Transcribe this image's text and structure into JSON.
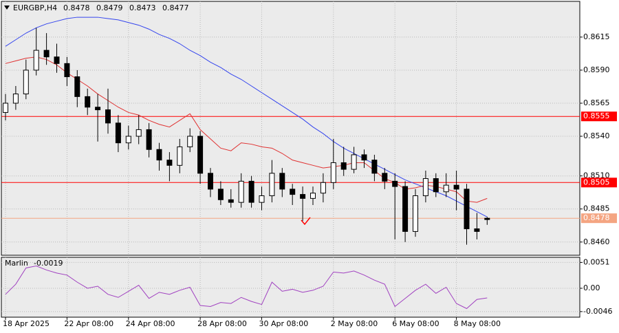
{
  "chart_data": {
    "type": "candlestick",
    "title": "EURGBP,H4",
    "categories": [
      "18 Apr 2025",
      null,
      null,
      null,
      null,
      null,
      "22 Apr 08:00",
      null,
      null,
      null,
      null,
      null,
      "24 Apr 08:00",
      null,
      null,
      null,
      null,
      null,
      null,
      "28 Apr 08:00",
      null,
      null,
      null,
      null,
      null,
      "30 Apr 08:00",
      null,
      null,
      null,
      null,
      null,
      null,
      "2 May 08:00",
      null,
      null,
      null,
      null,
      null,
      "6 May 08:00",
      null,
      null,
      null,
      null,
      null,
      "8 May 08:00",
      null,
      null,
      null
    ],
    "open": [
      0.8558,
      0.8565,
      0.8572,
      0.859,
      0.8605,
      0.86,
      0.8595,
      0.8585,
      0.857,
      0.8562,
      0.856,
      0.855,
      0.8535,
      0.854,
      0.8545,
      0.853,
      0.8522,
      0.8518,
      0.8532,
      0.854,
      0.8512,
      0.85,
      0.8492,
      0.849,
      0.8506,
      0.849,
      0.8495,
      0.8512,
      0.85,
      0.8496,
      0.8493,
      0.8497,
      0.8505,
      0.852,
      0.8515,
      0.8526,
      0.8522,
      0.8512,
      0.8506,
      0.8502,
      0.8468,
      0.8495,
      0.8508,
      0.8498,
      0.8503,
      0.85,
      0.847,
      0.8478
    ],
    "high": [
      0.8572,
      0.8578,
      0.8598,
      0.8622,
      0.8618,
      0.861,
      0.86,
      0.859,
      0.8576,
      0.8572,
      0.8576,
      0.8556,
      0.8548,
      0.8556,
      0.855,
      0.8535,
      0.8528,
      0.8538,
      0.8546,
      0.8544,
      0.8516,
      0.8506,
      0.85,
      0.8512,
      0.851,
      0.8502,
      0.8522,
      0.8516,
      0.8504,
      0.8502,
      0.8502,
      0.8512,
      0.8538,
      0.8532,
      0.8532,
      0.853,
      0.8526,
      0.8516,
      0.8512,
      0.8506,
      0.85,
      0.8514,
      0.8512,
      0.8512,
      0.8514,
      0.8504,
      0.8482,
      0.8479
    ],
    "low": [
      0.8552,
      0.856,
      0.8568,
      0.8586,
      0.8594,
      0.8588,
      0.8578,
      0.8562,
      0.8556,
      0.8536,
      0.8542,
      0.8528,
      0.853,
      0.8534,
      0.8524,
      0.8514,
      0.8506,
      0.8512,
      0.8528,
      0.8504,
      0.8494,
      0.8488,
      0.8486,
      0.8486,
      0.8486,
      0.8484,
      0.849,
      0.8494,
      0.8488,
      0.8476,
      0.8488,
      0.849,
      0.85,
      0.851,
      0.8512,
      0.8516,
      0.8506,
      0.85,
      0.8462,
      0.846,
      0.8464,
      0.849,
      0.8494,
      0.8494,
      0.8484,
      0.8458,
      0.8462,
      0.8473
    ],
    "close": [
      0.8565,
      0.8572,
      0.859,
      0.8605,
      0.86,
      0.8595,
      0.8585,
      0.857,
      0.8562,
      0.856,
      0.855,
      0.8535,
      0.854,
      0.8545,
      0.853,
      0.8522,
      0.8518,
      0.8532,
      0.854,
      0.8512,
      0.85,
      0.8492,
      0.849,
      0.8506,
      0.849,
      0.8495,
      0.8512,
      0.85,
      0.8496,
      0.8493,
      0.8497,
      0.8505,
      0.852,
      0.8515,
      0.8526,
      0.8522,
      0.8512,
      0.8506,
      0.8502,
      0.8468,
      0.8495,
      0.8508,
      0.8498,
      0.8503,
      0.85,
      0.847,
      0.8468,
      0.8477
    ],
    "series": [
      {
        "color": "#3344ee",
        "values": [
          0.8608,
          0.8613,
          0.8618,
          0.8622,
          0.8625,
          0.8627,
          0.8629,
          0.863,
          0.863,
          0.863,
          0.8629,
          0.8628,
          0.8626,
          0.8624,
          0.8621,
          0.8617,
          0.8614,
          0.861,
          0.8605,
          0.8601,
          0.8596,
          0.8592,
          0.8587,
          0.8583,
          0.8578,
          0.8573,
          0.8568,
          0.8563,
          0.8558,
          0.8553,
          0.8547,
          0.8542,
          0.8536,
          0.8531,
          0.8527,
          0.8523,
          0.8519,
          0.8515,
          0.8511,
          0.8507,
          0.8504,
          0.8501,
          0.8498,
          0.8495,
          0.8491,
          0.8487,
          0.8483,
          0.8479
        ]
      },
      {
        "color": "#e03030",
        "values": [
          0.8595,
          0.8597,
          0.8599,
          0.86,
          0.8598,
          0.8594,
          0.8588,
          0.8583,
          0.8578,
          0.8572,
          0.8567,
          0.8562,
          0.8558,
          0.8556,
          0.8552,
          0.8549,
          0.8547,
          0.8552,
          0.8557,
          0.8545,
          0.8538,
          0.8531,
          0.8529,
          0.8535,
          0.8534,
          0.8532,
          0.8531,
          0.8527,
          0.8522,
          0.852,
          0.8518,
          0.8516,
          0.8517,
          0.8518,
          0.852,
          0.852,
          0.8514,
          0.8508,
          0.8505,
          0.85,
          0.8501,
          0.8503,
          0.8502,
          0.85,
          0.8498,
          0.8491,
          0.849,
          0.8493
        ]
      }
    ],
    "ylim": [
      0.845,
      0.8642
    ],
    "yticks": [
      {
        "value": 0.846,
        "label": "0.8460"
      },
      0.8485,
      {
        "value": 0.851,
        "label": "0.8510"
      },
      {
        "value": 0.854,
        "label": "0.8540"
      },
      0.8565,
      {
        "value": 0.859,
        "label": "0.8590"
      },
      0.8615
    ],
    "grid": true,
    "levels": [
      {
        "value": 0.8555,
        "color": "#ff0000"
      },
      {
        "value": 0.8505,
        "color": "#ff0000"
      }
    ],
    "price_line": {
      "value": 0.8478,
      "color": "#f4a582"
    },
    "indicator": {
      "type": "line",
      "title": "Marlin",
      "color": "#a040c0",
      "values": [
        -0.0012,
        0.0008,
        0.004,
        0.0044,
        0.0036,
        0.003,
        0.0026,
        0.0012,
        0.0,
        0.0004,
        -0.0012,
        -0.0018,
        -0.0006,
        0.0006,
        -0.002,
        -0.0008,
        -0.0012,
        -0.0004,
        0.0002,
        -0.0034,
        -0.0036,
        -0.0028,
        -0.003,
        -0.0018,
        -0.0026,
        -0.0032,
        0.0012,
        -0.0006,
        -0.0002,
        -0.0008,
        -0.0004,
        0.0004,
        0.0032,
        0.003,
        0.0034,
        0.0026,
        0.0016,
        0.0008,
        -0.0036,
        -0.002,
        -0.0004,
        0.0008,
        -0.001,
        0.0002,
        -0.003,
        -0.004,
        -0.0022,
        -0.0019
      ],
      "ylim": [
        -0.0057,
        0.0061
      ],
      "yticks": [
        0.0051,
        {
          "value": 0,
          "label": "0.00"
        },
        -0.0046
      ]
    }
  }
}
